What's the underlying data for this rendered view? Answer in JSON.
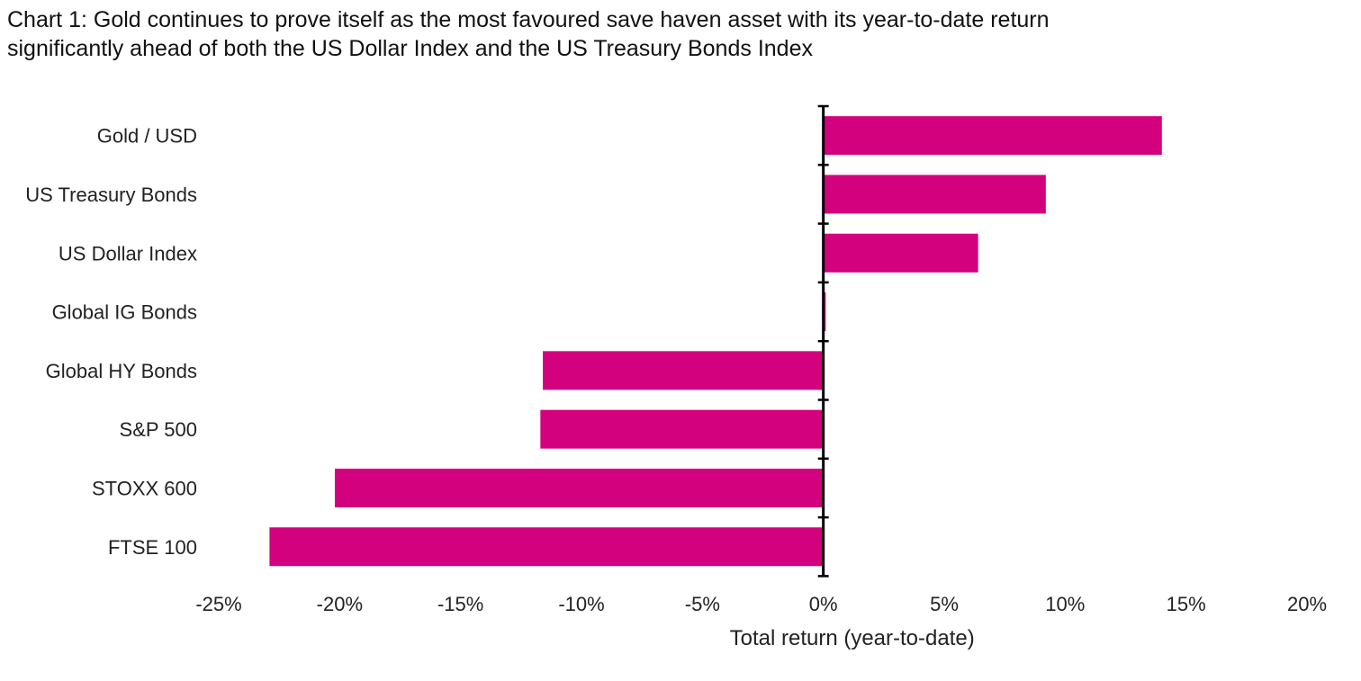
{
  "chart_data": {
    "type": "bar",
    "orientation": "horizontal",
    "title": "Chart 1: Gold continues to prove itself as the most favoured save haven asset with its year-to-date return significantly ahead of both the US Dollar Index and the US Treasury Bonds Index",
    "xlabel": "Total return (year-to-date)",
    "ylabel": "",
    "categories": [
      "Gold / USD",
      "US Treasury Bonds",
      "US Dollar Index",
      "Global IG Bonds",
      "Global HY Bonds",
      "S&P 500",
      "STOXX 600",
      "FTSE 100"
    ],
    "values": [
      14.0,
      9.2,
      6.4,
      0.1,
      -11.6,
      -11.7,
      -20.2,
      -22.9
    ],
    "unit": "%",
    "xlim": [
      -25,
      20
    ],
    "xticks": [
      -25,
      -20,
      -15,
      -10,
      -5,
      0,
      5,
      10,
      15,
      20
    ],
    "xtick_labels": [
      "-25%",
      "-20%",
      "-15%",
      "-10%",
      "-5%",
      "0%",
      "5%",
      "10%",
      "15%",
      "20%"
    ],
    "bar_color": "#d3017e",
    "grid": false,
    "legend": "none"
  }
}
